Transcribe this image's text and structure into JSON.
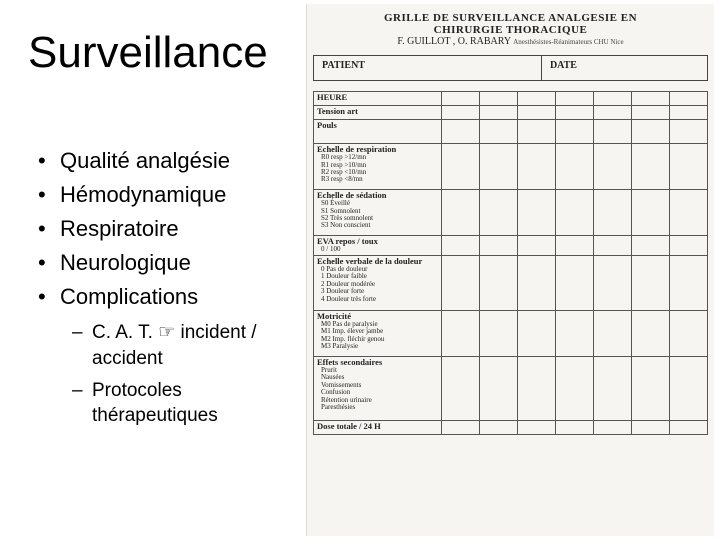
{
  "title": "Surveillance",
  "bullets": [
    "Qualité analgésie",
    "Hémodynamique",
    "Respiratoire",
    "Neurologique",
    "Complications"
  ],
  "sub_bullets": [
    "C. A. T. ☞ incident / accident",
    "Protocoles thérapeutiques"
  ],
  "form": {
    "header_line1": "GRILLE DE SURVEILLANCE ANALGESIE EN",
    "header_line2": "CHIRURGIE THORACIQUE",
    "authors": "F. GUILLOT , O. RABARY",
    "roles": "Anesthésistes-Réanimateurs CHU Nice",
    "patient_label": "PATIENT",
    "date_label": "DATE",
    "time_cols": 7,
    "rows": [
      {
        "type": "section",
        "label": "HEURE"
      },
      {
        "type": "row",
        "label": "Tension art"
      },
      {
        "type": "row",
        "label": "Pouls",
        "tall": true
      },
      {
        "type": "row",
        "label": "Echelle de respiration",
        "subs": [
          "R0 resp        >12/mn",
          "R1 resp        >10/mn",
          "R2 resp        <10/mn",
          "R3 resp        <8/mn"
        ]
      },
      {
        "type": "row",
        "label": "Echelle de sédation",
        "subs": [
          "S0  Éveillé",
          "S1  Somnolent",
          "S2  Très somnolent",
          "S3  Non conscient"
        ]
      },
      {
        "type": "row",
        "label": "EVA repos / toux",
        "subs": [
          "0 / 100"
        ]
      },
      {
        "type": "row",
        "label": "Echelle verbale de la douleur",
        "subs": [
          "0   Pas de douleur",
          "1   Douleur faible",
          "2   Douleur modérée",
          "3   Douleur forte",
          "4   Douleur très forte"
        ]
      },
      {
        "type": "row",
        "label": "Motricité",
        "subs": [
          "M0  Pas de paralysie",
          "M1  Imp. élever jambe",
          "M2  Imp. fléchir genou",
          "M3  Paralysie"
        ]
      },
      {
        "type": "row",
        "label": "Effets secondaires",
        "subs": [
          "Prurit",
          "Nausées",
          "Vomissements",
          "Confusion",
          "Rétention urinaire",
          "Paresthésies"
        ]
      },
      {
        "type": "row",
        "label": "Dose totale / 24 H"
      }
    ],
    "colors": {
      "paper": "#f6f5f1",
      "border": "#555555",
      "text": "#222222"
    }
  }
}
